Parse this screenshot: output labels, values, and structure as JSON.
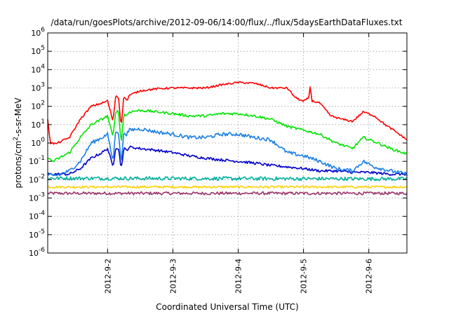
{
  "chart_data": {
    "type": "line",
    "title": "/data/run/goesPlots/archive/2012-09-06/14:00/flux/../flux/5daysEarthDataFluxes.txt",
    "xlabel": "Coordinated Universal Time (UTC)",
    "ylabel_base": "protons/cm",
    "ylabel_sup": "2",
    "ylabel_rest": "-s-sr-MeV",
    "xlim": [
      "2012-09-01T02:00",
      "2012-09-06T14:00"
    ],
    "ylim": [
      1e-06,
      1000000.0
    ],
    "yscale": "log",
    "grid": true,
    "x_ticks": [
      {
        "label": "2012-9-2",
        "value": "2012-09-02T00:00"
      },
      {
        "label": "2012-9-3",
        "value": "2012-09-03T00:00"
      },
      {
        "label": "2012-9-4",
        "value": "2012-09-04T00:00"
      },
      {
        "label": "2012-9-5",
        "value": "2012-09-05T00:00"
      },
      {
        "label": "2012-9-6",
        "value": "2012-09-06T00:00"
      }
    ],
    "y_ticks": [
      {
        "base": "10",
        "exp": "6",
        "value": 1000000.0
      },
      {
        "base": "10",
        "exp": "5",
        "value": 100000.0
      },
      {
        "base": "10",
        "exp": "4",
        "value": 10000.0
      },
      {
        "base": "10",
        "exp": "3",
        "value": 1000.0
      },
      {
        "base": "10",
        "exp": "2",
        "value": 100.0
      },
      {
        "base": "10",
        "exp": "1",
        "value": 10.0
      },
      {
        "base": "10",
        "exp": "0",
        "value": 1.0
      },
      {
        "base": "10",
        "exp": "-1",
        "value": 0.1
      },
      {
        "base": "10",
        "exp": "-2",
        "value": 0.01
      },
      {
        "base": "10",
        "exp": "-3",
        "value": 0.001
      },
      {
        "base": "10",
        "exp": "-4",
        "value": 0.0001
      },
      {
        "base": "10",
        "exp": "-5",
        "value": 1e-05
      },
      {
        "base": "10",
        "exp": "-6",
        "value": 1e-06
      }
    ],
    "series": [
      {
        "color": "#ff0000",
        "noise": 0.05,
        "x": [
          "2012-09-01T02:00",
          "2012-09-01T03:00",
          "2012-09-01T05:00",
          "2012-09-01T10:00",
          "2012-09-01T14:00",
          "2012-09-01T18:00",
          "2012-09-01T22:00",
          "2012-09-02T00:00",
          "2012-09-02T02:00",
          "2012-09-02T03:00",
          "2012-09-02T04:00",
          "2012-09-02T05:00",
          "2012-09-02T06:00",
          "2012-09-02T07:00",
          "2012-09-02T08:00",
          "2012-09-02T12:00",
          "2012-09-02T18:00",
          "2012-09-03T00:00",
          "2012-09-03T06:00",
          "2012-09-03T12:00",
          "2012-09-03T18:00",
          "2012-09-04T00:00",
          "2012-09-04T06:00",
          "2012-09-04T12:00",
          "2012-09-04T18:00",
          "2012-09-04T21:00",
          "2012-09-05T00:00",
          "2012-09-05T02:00",
          "2012-09-05T02:30",
          "2012-09-05T03:00",
          "2012-09-05T06:00",
          "2012-09-05T10:00",
          "2012-09-05T14:00",
          "2012-09-05T18:00",
          "2012-09-05T22:00",
          "2012-09-06T02:00",
          "2012-09-06T06:00",
          "2012-09-06T10:00",
          "2012-09-06T14:00"
        ],
        "y": [
          20,
          1,
          0.9,
          2,
          20,
          100,
          150,
          200,
          15,
          400,
          300,
          8,
          400,
          200,
          400,
          700,
          900,
          1000,
          1000,
          1000,
          1500,
          2000,
          1800,
          1000,
          1000,
          300,
          180,
          300,
          1500,
          200,
          150,
          30,
          20,
          15,
          50,
          30,
          10,
          4,
          1.5
        ]
      },
      {
        "color": "#00e600",
        "noise": 0.07,
        "x": [
          "2012-09-01T02:00",
          "2012-09-01T04:00",
          "2012-09-01T10:00",
          "2012-09-01T14:00",
          "2012-09-01T18:00",
          "2012-09-01T22:00",
          "2012-09-02T00:00",
          "2012-09-02T02:00",
          "2012-09-02T03:00",
          "2012-09-02T04:00",
          "2012-09-02T05:00",
          "2012-09-02T06:00",
          "2012-09-02T07:00",
          "2012-09-02T08:00",
          "2012-09-02T12:00",
          "2012-09-02T18:00",
          "2012-09-03T00:00",
          "2012-09-03T06:00",
          "2012-09-03T12:00",
          "2012-09-03T18:00",
          "2012-09-04T00:00",
          "2012-09-04T06:00",
          "2012-09-04T12:00",
          "2012-09-04T18:00",
          "2012-09-05T00:00",
          "2012-09-05T06:00",
          "2012-09-05T12:00",
          "2012-09-05T18:00",
          "2012-09-05T22:00",
          "2012-09-06T02:00",
          "2012-09-06T08:00",
          "2012-09-06T14:00"
        ],
        "y": [
          0.15,
          0.1,
          0.3,
          2,
          10,
          20,
          30,
          2,
          60,
          50,
          1,
          40,
          30,
          50,
          60,
          50,
          40,
          30,
          30,
          40,
          40,
          30,
          20,
          8,
          5,
          3,
          1,
          0.5,
          2,
          1.2,
          0.5,
          0.25
        ]
      },
      {
        "color": "#1a7fe6",
        "noise": 0.1,
        "x": [
          "2012-09-01T02:00",
          "2012-09-01T04:00",
          "2012-09-01T10:00",
          "2012-09-01T14:00",
          "2012-09-01T18:00",
          "2012-09-01T22:00",
          "2012-09-02T00:00",
          "2012-09-02T02:00",
          "2012-09-02T03:00",
          "2012-09-02T04:00",
          "2012-09-02T05:00",
          "2012-09-02T06:00",
          "2012-09-02T07:00",
          "2012-09-02T08:00",
          "2012-09-02T12:00",
          "2012-09-02T18:00",
          "2012-09-03T00:00",
          "2012-09-03T06:00",
          "2012-09-03T12:00",
          "2012-09-03T18:00",
          "2012-09-04T00:00",
          "2012-09-04T06:00",
          "2012-09-04T12:00",
          "2012-09-04T18:00",
          "2012-09-05T00:00",
          "2012-09-05T06:00",
          "2012-09-05T12:00",
          "2012-09-05T18:00",
          "2012-09-05T22:00",
          "2012-09-06T02:00",
          "2012-09-06T08:00",
          "2012-09-06T14:00"
        ],
        "y": [
          0.02,
          0.015,
          0.03,
          0.1,
          1,
          2,
          3,
          0.1,
          5,
          4,
          0.08,
          4,
          3,
          5,
          6,
          4,
          3,
          2,
          2,
          3,
          3,
          2,
          1.5,
          0.3,
          0.2,
          0.1,
          0.04,
          0.03,
          0.1,
          0.05,
          0.03,
          0.02
        ]
      },
      {
        "color": "#0000cc",
        "noise": 0.07,
        "x": [
          "2012-09-01T02:00",
          "2012-09-01T10:00",
          "2012-09-01T14:00",
          "2012-09-01T18:00",
          "2012-09-01T22:00",
          "2012-09-02T00:00",
          "2012-09-02T02:00",
          "2012-09-02T03:00",
          "2012-09-02T04:00",
          "2012-09-02T05:00",
          "2012-09-02T06:00",
          "2012-09-02T07:00",
          "2012-09-02T08:00",
          "2012-09-02T12:00",
          "2012-09-02T18:00",
          "2012-09-03T00:00",
          "2012-09-03T06:00",
          "2012-09-03T12:00",
          "2012-09-03T18:00",
          "2012-09-04T00:00",
          "2012-09-04T06:00",
          "2012-09-04T12:00",
          "2012-09-04T18:00",
          "2012-09-05T00:00",
          "2012-09-05T06:00",
          "2012-09-05T12:00",
          "2012-09-05T18:00",
          "2012-09-06T00:00",
          "2012-09-06T08:00",
          "2012-09-06T14:00"
        ],
        "y": [
          0.02,
          0.02,
          0.04,
          0.15,
          0.3,
          0.5,
          0.05,
          0.6,
          0.5,
          0.04,
          0.5,
          0.4,
          0.6,
          0.5,
          0.4,
          0.3,
          0.2,
          0.15,
          0.12,
          0.1,
          0.08,
          0.06,
          0.05,
          0.04,
          0.03,
          0.03,
          0.025,
          0.025,
          0.02,
          0.02
        ]
      },
      {
        "color": "#00b0a0",
        "noise": 0.1,
        "x": [
          "2012-09-01T02:00",
          "2012-09-06T14:00"
        ],
        "y": [
          0.012,
          0.011
        ]
      },
      {
        "color": "#ffd000",
        "noise": 0.06,
        "x": [
          "2012-09-01T02:00",
          "2012-09-06T14:00"
        ],
        "y": [
          0.004,
          0.004
        ]
      },
      {
        "color": "#993366",
        "noise": 0.08,
        "x": [
          "2012-09-01T02:00",
          "2012-09-06T14:00"
        ],
        "y": [
          0.0018,
          0.0018
        ]
      }
    ]
  }
}
